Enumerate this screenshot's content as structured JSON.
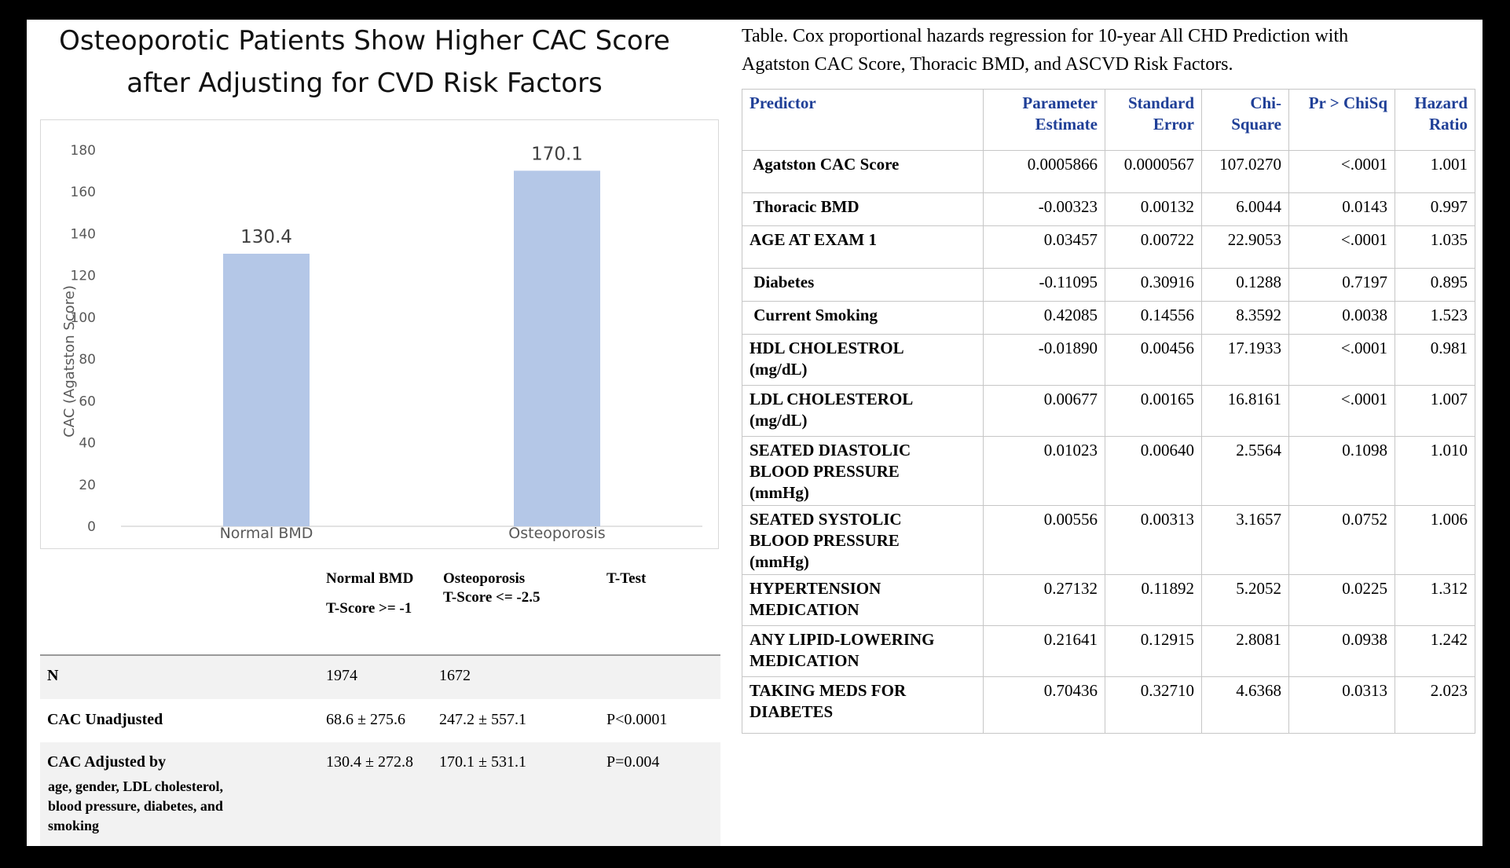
{
  "chart_title_line1": "Osteoporotic Patients Show Higher CAC Score",
  "chart_title_line2": "after Adjusting for CVD Risk Factors",
  "chart_data": {
    "type": "bar",
    "title": "Osteoporotic Patients Show Higher CAC Score after Adjusting for CVD Risk Factors",
    "categories": [
      "Normal BMD",
      "Osteoporosis"
    ],
    "values": [
      130.4,
      170.1
    ],
    "value_labels": [
      "130.4",
      "170.1"
    ],
    "ylabel": "CAC  (Agatston Score)",
    "xlabel": "",
    "ylim": [
      0,
      180
    ],
    "yticks": [
      0,
      20,
      40,
      60,
      80,
      100,
      120,
      140,
      160,
      180
    ],
    "bar_color": "#b4c7e7",
    "grid": false,
    "legend": "none"
  },
  "summary_table": {
    "headers": {
      "normal_line1": "Normal BMD",
      "normal_line2": "T-Score >= -1",
      "osteo_line1": "Osteoporosis",
      "osteo_line2": "T-Score <= -2.5",
      "ttest": "T-Test"
    },
    "rows": [
      {
        "label": "N",
        "normal": "1974",
        "osteo": "1672",
        "ttest": ""
      },
      {
        "label": "CAC Unadjusted",
        "normal": "68.6 ± 275.6",
        "osteo": "247.2 ± 557.1",
        "ttest": "P<0.0001"
      },
      {
        "label": "CAC Adjusted by",
        "normal": "130.4 ± 272.8",
        "osteo": "170.1 ± 531.1",
        "ttest": "P=0.004"
      }
    ],
    "adjusted_note_line1": "age, gender, LDL cholesterol,",
    "adjusted_note_line2": "blood pressure, diabetes, and",
    "adjusted_note_line3": "smoking"
  },
  "regression_table": {
    "caption_line1": "Table.  Cox proportional hazards regression for 10-year All CHD Prediction with",
    "caption_line2": "Agatston CAC Score, Thoracic BMD, and ASCVD Risk Factors.",
    "columns": {
      "predictor": "Predictor",
      "estimate_l1": "Parameter",
      "estimate_l2": "Estimate",
      "se_l1": "Standard",
      "se_l2": "Error",
      "chi_l1": "Chi-",
      "chi_l2": "Square",
      "p": "Pr > ChiSq",
      "hr_l1": "Hazard",
      "hr_l2": "Ratio"
    },
    "rows": [
      {
        "l1": " Agatston CAC Score",
        "l2": "",
        "l3": "",
        "est": "0.0005866",
        "se": "0.0000567",
        "chi": "107.0270",
        "p": "<.0001",
        "hr": "1.001"
      },
      {
        "l1": " Thoracic BMD",
        "l2": "",
        "l3": "",
        "est": "-0.00323",
        "se": "0.00132",
        "chi": "6.0044",
        "p": "0.0143",
        "hr": "0.997"
      },
      {
        "l1": "AGE AT EXAM 1",
        "l2": "",
        "l3": "",
        "est": "0.03457",
        "se": "0.00722",
        "chi": "22.9053",
        "p": "<.0001",
        "hr": "1.035"
      },
      {
        "l1": " Diabetes",
        "l2": "",
        "l3": "",
        "est": "-0.11095",
        "se": "0.30916",
        "chi": "0.1288",
        "p": "0.7197",
        "hr": "0.895"
      },
      {
        "l1": " Current Smoking",
        "l2": "",
        "l3": "",
        "est": "0.42085",
        "se": "0.14556",
        "chi": "8.3592",
        "p": "0.0038",
        "hr": "1.523"
      },
      {
        "l1": "HDL CHOLESTROL",
        "l2": "(mg/dL)",
        "l3": "",
        "est": "-0.01890",
        "se": "0.00456",
        "chi": "17.1933",
        "p": "<.0001",
        "hr": "0.981"
      },
      {
        "l1": "LDL CHOLESTEROL",
        "l2": "(mg/dL)",
        "l3": "",
        "est": "0.00677",
        "se": "0.00165",
        "chi": "16.8161",
        "p": "<.0001",
        "hr": "1.007"
      },
      {
        "l1": "SEATED DIASTOLIC",
        "l2": "BLOOD PRESSURE",
        "l3": "(mmHg)",
        "est": "0.01023",
        "se": "0.00640",
        "chi": "2.5564",
        "p": "0.1098",
        "hr": "1.010"
      },
      {
        "l1": "SEATED SYSTOLIC",
        "l2": "BLOOD PRESSURE",
        "l3": "(mmHg)",
        "est": "0.00556",
        "se": "0.00313",
        "chi": "3.1657",
        "p": "0.0752",
        "hr": "1.006"
      },
      {
        "l1": "HYPERTENSION",
        "l2": "MEDICATION",
        "l3": "",
        "est": "0.27132",
        "se": "0.11892",
        "chi": "5.2052",
        "p": "0.0225",
        "hr": "1.312"
      },
      {
        "l1": "ANY LIPID-LOWERING",
        "l2": "MEDICATION",
        "l3": "",
        "est": "0.21641",
        "se": "0.12915",
        "chi": "2.8081",
        "p": "0.0938",
        "hr": "1.242"
      },
      {
        "l1": "TAKING MEDS FOR",
        "l2": "DIABETES",
        "l3": "",
        "est": "0.70436",
        "se": "0.32710",
        "chi": "4.6368",
        "p": "0.0313",
        "hr": "2.023"
      }
    ]
  }
}
